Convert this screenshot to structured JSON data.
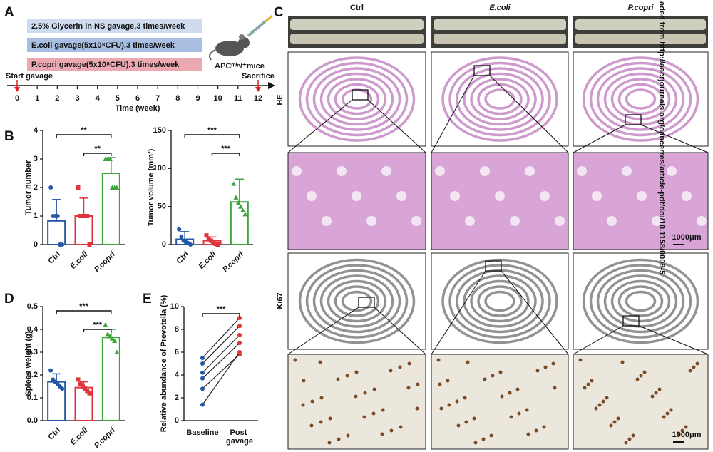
{
  "panel_labels": [
    "A",
    "B",
    "C",
    "D",
    "E"
  ],
  "timeline": {
    "groups": [
      {
        "text": "2.5% Glycerin in NS gavage,3 times/week",
        "color": "#cfdcef"
      },
      {
        "text": "E.coli gavage(5x10⁸CFU),3 times/week",
        "color": "#a8bfe2"
      },
      {
        "text": "P.copri gavage(5x10⁸CFU),3 times/week",
        "color": "#eaa9b1"
      }
    ],
    "mouse_label": "APCᵐⁱⁿ/⁺mice",
    "start_label": "Start gavage",
    "end_label": "Sacrifice",
    "xlabel": "Time (week)",
    "xlim": [
      0,
      12
    ],
    "xticks": [
      0,
      1,
      2,
      3,
      4,
      5,
      6,
      7,
      8,
      9,
      10,
      11,
      12
    ]
  },
  "chart_data": [
    {
      "type": "bar",
      "ylabel": "Tumor number",
      "categories": [
        "Ctrl",
        "E.coli",
        "P.copri"
      ],
      "colors": [
        "#2457a5",
        "#e0333a",
        "#3aa53a"
      ],
      "values": [
        0.83,
        1.0,
        2.5
      ],
      "errors": [
        0.75,
        0.63,
        0.55
      ],
      "points": [
        [
          2,
          1,
          1,
          1,
          0,
          0
        ],
        [
          2,
          1,
          1,
          1,
          1,
          0
        ],
        [
          3,
          3,
          3,
          2,
          2,
          2
        ]
      ],
      "ylim": [
        0,
        4
      ],
      "yticks": [
        0,
        1,
        2,
        3,
        4
      ],
      "significance": [
        "**",
        "**"
      ]
    },
    {
      "type": "bar",
      "ylabel": "Tumor volume (mm³)",
      "categories": [
        "Ctrl",
        "E.coli",
        "P.copri"
      ],
      "colors": [
        "#2457a5",
        "#e0333a",
        "#3aa53a"
      ],
      "values": [
        7,
        5,
        56
      ],
      "errors": [
        10,
        5,
        30
      ],
      "points": [
        [
          20,
          10,
          5,
          3,
          2,
          0
        ],
        [
          12,
          8,
          5,
          2,
          1,
          0
        ],
        [
          80,
          62,
          55,
          50,
          45,
          40
        ]
      ],
      "ylim": [
        0,
        150
      ],
      "yticks": [
        0,
        50,
        100,
        150
      ],
      "significance": [
        "***",
        "***"
      ]
    },
    {
      "type": "bar",
      "ylabel": "Spleen weight (g)",
      "categories": [
        "Ctrl",
        "E.coli",
        "P.copri"
      ],
      "colors": [
        "#2457a5",
        "#e0333a",
        "#3aa53a"
      ],
      "values": [
        0.17,
        0.145,
        0.365
      ],
      "errors": [
        0.035,
        0.025,
        0.035
      ],
      "points": [
        [
          0.22,
          0.18,
          0.17,
          0.16,
          0.15,
          0.14
        ],
        [
          0.18,
          0.16,
          0.15,
          0.14,
          0.13,
          0.12
        ],
        [
          0.42,
          0.38,
          0.37,
          0.36,
          0.35,
          0.3
        ]
      ],
      "ylim": [
        0,
        0.5
      ],
      "yticks": [
        {
          "value": 0,
          "label": "0.0"
        },
        0.1,
        0.2,
        0.3,
        0.4,
        0.5
      ],
      "significance": [
        "***",
        "***"
      ]
    },
    {
      "type": "line",
      "ylabel": "Relative abundance of Prevotella (%)",
      "categories": [
        "Baseline",
        "Post gavage"
      ],
      "point_colors": [
        "#2457a5",
        "#e0333a"
      ],
      "line_color": "#222222",
      "series": [
        {
          "values": [
            5.5,
            9.0
          ]
        },
        {
          "values": [
            5.0,
            8.3
          ]
        },
        {
          "values": [
            4.2,
            7.5
          ]
        },
        {
          "values": [
            3.7,
            6.8
          ]
        },
        {
          "values": [
            2.8,
            5.8
          ]
        },
        {
          "values": [
            1.4,
            6.0
          ]
        }
      ],
      "ylim": [
        0,
        10
      ],
      "yticks": [
        0,
        2,
        4,
        6,
        8,
        10
      ],
      "significance": [
        "***"
      ]
    }
  ],
  "histology": {
    "columns": [
      "Ctrl",
      "E.coli",
      "P.copri"
    ],
    "rows": [
      "HE",
      "Ki67"
    ],
    "scale_bar": "1000μm"
  },
  "watermark": "aded from http://aacrjournals.org/cancerres/article-pdf/doi/10.1158/0008-5"
}
